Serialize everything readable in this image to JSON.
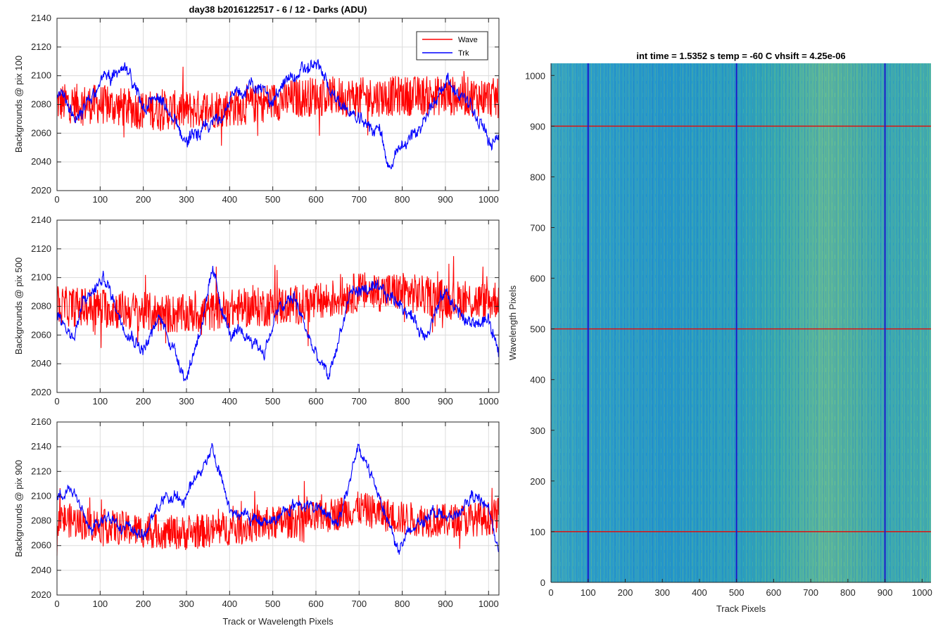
{
  "chart_data": [
    {
      "type": "line",
      "title": "day38 b2016122517 - 6 / 12 - Darks (ADU)",
      "ylabel": "Backgrounds @ pix 100",
      "xlabel": "",
      "xlim": [
        0,
        1024
      ],
      "ylim": [
        2020,
        2140
      ],
      "xticks": [
        0,
        100,
        200,
        300,
        400,
        500,
        600,
        700,
        800,
        900,
        1000
      ],
      "yticks": [
        2020,
        2040,
        2060,
        2080,
        2100,
        2120,
        2140
      ],
      "grid": true,
      "legend": {
        "placement": "top-right",
        "entries": [
          "Wave",
          "Trk"
        ]
      },
      "series": [
        {
          "name": "Wave",
          "color": "#ff0000",
          "x": [
            0,
            100,
            200,
            300,
            400,
            500,
            600,
            700,
            800,
            900,
            1000,
            1023
          ],
          "y": [
            2081,
            2080,
            2076,
            2076,
            2078,
            2082,
            2086,
            2085,
            2086,
            2086,
            2085,
            2084
          ]
        },
        {
          "name": "Trk",
          "color": "#0000ff",
          "x": [
            0,
            50,
            100,
            160,
            200,
            230,
            300,
            350,
            400,
            450,
            500,
            540,
            600,
            650,
            700,
            750,
            770,
            800,
            850,
            900,
            950,
            1000,
            1023
          ],
          "y": [
            2087,
            2068,
            2098,
            2102,
            2080,
            2085,
            2055,
            2062,
            2082,
            2094,
            2084,
            2098,
            2108,
            2082,
            2068,
            2062,
            2034,
            2050,
            2068,
            2098,
            2082,
            2055,
            2060
          ]
        }
      ]
    },
    {
      "type": "line",
      "title": "",
      "ylabel": "Backgrounds @ pix 500",
      "xlabel": "",
      "xlim": [
        0,
        1024
      ],
      "ylim": [
        2020,
        2140
      ],
      "xticks": [
        0,
        100,
        200,
        300,
        400,
        500,
        600,
        700,
        800,
        900,
        1000
      ],
      "yticks": [
        2020,
        2040,
        2060,
        2080,
        2100,
        2120,
        2140
      ],
      "grid": true,
      "series": [
        {
          "name": "Wave",
          "color": "#ff0000",
          "x": [
            0,
            100,
            200,
            300,
            400,
            500,
            600,
            700,
            800,
            900,
            1000,
            1023
          ],
          "y": [
            2080,
            2079,
            2076,
            2074,
            2078,
            2080,
            2082,
            2090,
            2090,
            2085,
            2083,
            2086
          ]
        },
        {
          "name": "Trk",
          "color": "#0000ff",
          "x": [
            0,
            40,
            60,
            110,
            150,
            200,
            240,
            300,
            350,
            360,
            400,
            450,
            480,
            510,
            550,
            600,
            630,
            680,
            720,
            760,
            800,
            850,
            900,
            950,
            1000,
            1023
          ],
          "y": [
            2075,
            2058,
            2082,
            2100,
            2070,
            2050,
            2072,
            2030,
            2085,
            2104,
            2060,
            2058,
            2048,
            2076,
            2086,
            2045,
            2030,
            2090,
            2092,
            2088,
            2082,
            2060,
            2090,
            2068,
            2070,
            2045
          ]
        }
      ]
    },
    {
      "type": "line",
      "title": "",
      "ylabel": "Backgrounds @ pix 900",
      "xlabel": "Track or Wavelength Pixels",
      "xlim": [
        0,
        1024
      ],
      "ylim": [
        2020,
        2160
      ],
      "xticks": [
        0,
        100,
        200,
        300,
        400,
        500,
        600,
        700,
        800,
        900,
        1000
      ],
      "yticks": [
        2020,
        2040,
        2060,
        2080,
        2100,
        2120,
        2140,
        2160
      ],
      "grid": true,
      "series": [
        {
          "name": "Wave",
          "color": "#ff0000",
          "x": [
            0,
            100,
            200,
            300,
            400,
            500,
            600,
            700,
            800,
            900,
            1000,
            1023
          ],
          "y": [
            2082,
            2076,
            2072,
            2070,
            2074,
            2078,
            2082,
            2090,
            2082,
            2080,
            2082,
            2085
          ]
        },
        {
          "name": "Trk",
          "color": "#0000ff",
          "x": [
            0,
            30,
            80,
            120,
            170,
            200,
            250,
            290,
            330,
            360,
            400,
            440,
            500,
            560,
            600,
            650,
            700,
            740,
            790,
            830,
            870,
            920,
            960,
            1000,
            1023
          ],
          "y": [
            2098,
            2110,
            2070,
            2085,
            2072,
            2068,
            2100,
            2095,
            2120,
            2140,
            2090,
            2082,
            2080,
            2095,
            2090,
            2080,
            2138,
            2108,
            2058,
            2075,
            2090,
            2080,
            2100,
            2092,
            2055
          ]
        }
      ]
    },
    {
      "type": "heatmap",
      "title": "int time = 1.5352 s    temp = -60 C    vhsift = 4.25e-06",
      "xlabel": "Track Pixels",
      "ylabel": "Wavelength Pixels",
      "xlim": [
        0,
        1024
      ],
      "ylim": [
        0,
        1024
      ],
      "xticks": [
        0,
        100,
        200,
        300,
        400,
        500,
        600,
        700,
        800,
        900,
        1000
      ],
      "yticks": [
        0,
        100,
        200,
        300,
        400,
        500,
        600,
        700,
        800,
        900,
        1000
      ],
      "colormap": "parula",
      "vertical_markers": {
        "color": "#1a1acc",
        "x": [
          100,
          500,
          900
        ]
      },
      "horizontal_markers": {
        "color": "#dd1111",
        "y": [
          100,
          500,
          900
        ]
      },
      "brighter_band_x": [
        650,
        850
      ]
    }
  ]
}
